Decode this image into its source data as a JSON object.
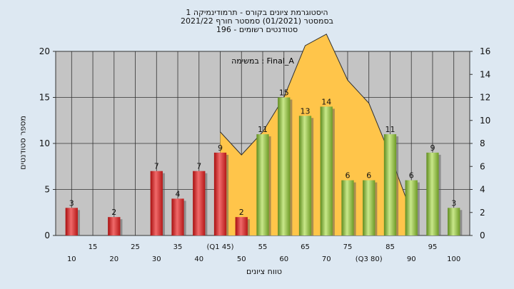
{
  "title_lines": [
    "היסטוגרמת ציונים בקורס - תרמודינמיקה 1",
    "בסמסטר  (01/2021)  סמסטר חורף  2021/22",
    "סטודנטים רשומים - 196"
  ],
  "chart_data": {
    "type": "bar",
    "ylabel": "מספר סטודנטים",
    "xlabel": "טווח ציונים",
    "annotation": "במשימה : Final_A",
    "ylim": [
      0,
      20
    ],
    "y2lim": [
      0,
      16
    ],
    "y_ticks": [
      0,
      5,
      10,
      15,
      20
    ],
    "y2_ticks": [
      0,
      2,
      4,
      6,
      8,
      10,
      12,
      14,
      16
    ],
    "grid": true,
    "categories": [
      "10",
      "15",
      "20",
      "25",
      "30",
      "35",
      "40",
      "(Q1 45)",
      "50",
      "55",
      "60",
      "65",
      "70",
      "75",
      "(Q3 80)",
      "85",
      "90",
      "95",
      "100"
    ],
    "values": [
      3,
      0,
      2,
      0,
      7,
      4,
      7,
      9,
      2,
      11,
      15,
      13,
      14,
      6,
      6,
      11,
      6,
      9,
      3
    ],
    "bar_colors": [
      "red",
      "red",
      "red",
      "red",
      "red",
      "red",
      "red",
      "red",
      "red",
      "green",
      "green",
      "green",
      "green",
      "green",
      "green",
      "green",
      "green",
      "green",
      "green"
    ],
    "area": {
      "x_start": "(Q1 45)",
      "x_end": "85",
      "values": [
        9,
        7,
        9,
        12,
        16.5,
        17.5,
        13.5,
        11.5,
        7,
        2
      ]
    },
    "colors": {
      "red": "#d42a2a",
      "green": "#8ab53a",
      "area": "#ffc54a",
      "plot_bg": "#c4c4c4",
      "page_bg": "#dde8f2"
    }
  }
}
